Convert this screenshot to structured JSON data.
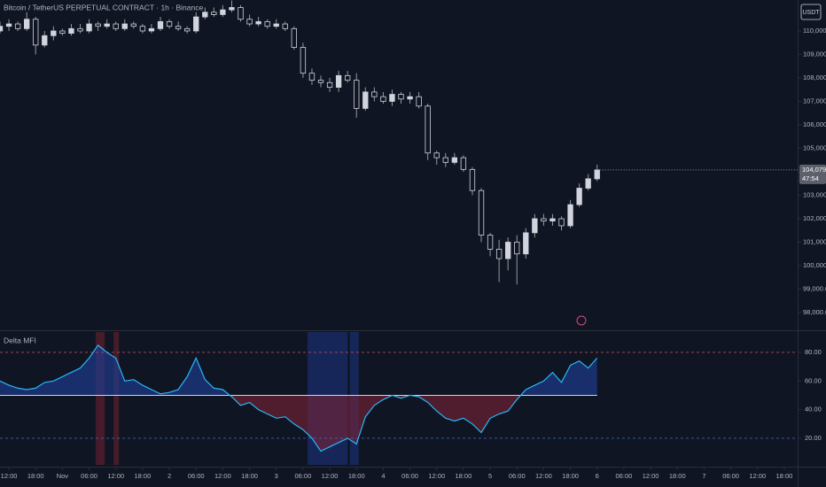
{
  "chart_data": [
    {
      "type": "candlestick",
      "title": "Bitcoin / TetherUS PERPETUAL CONTRACT · 1h · Binance",
      "currency_label": "USDT",
      "last_price": 104079,
      "last_price_label": "104,079.0",
      "countdown": "47:54",
      "up_color": "#d1d4dc",
      "down_color": "#0f1523",
      "wick_color": "#9598a1",
      "x": [
        -2,
        0,
        2,
        4,
        6,
        8,
        10,
        12,
        14,
        16,
        18,
        20,
        22,
        24,
        26,
        28,
        30,
        32,
        34,
        36,
        38,
        40,
        42,
        44,
        46,
        48,
        50,
        52,
        54,
        56,
        58,
        60,
        62,
        64,
        66,
        68,
        70,
        72,
        74,
        76,
        78,
        80,
        82,
        84,
        86,
        88,
        90,
        92,
        94,
        96,
        98,
        100,
        102,
        104,
        106,
        108,
        110,
        112,
        114,
        116,
        118,
        120,
        122,
        124,
        126,
        128,
        130,
        132
      ],
      "open": [
        110000,
        110200,
        110300,
        110100,
        110500,
        109400,
        109800,
        110000,
        109900,
        110100,
        110000,
        110300,
        110200,
        110300,
        110100,
        110300,
        110200,
        110000,
        110100,
        110400,
        110200,
        110100,
        110000,
        110600,
        110800,
        110700,
        110900,
        111000,
        110500,
        110300,
        110400,
        110200,
        110300,
        110100,
        109300,
        108200,
        107900,
        107800,
        107600,
        108100,
        107900,
        106700,
        107400,
        107200,
        107000,
        107300,
        107100,
        107200,
        106800,
        104800,
        104600,
        104400,
        104600,
        104100,
        103200,
        101300,
        100700,
        100300,
        101000,
        100500,
        101400,
        102000,
        101900,
        102000,
        101700,
        102600,
        103300,
        103700
      ],
      "high": [
        110400,
        110500,
        110400,
        110800,
        110600,
        110000,
        110200,
        110100,
        110300,
        110300,
        110500,
        110400,
        110500,
        110400,
        110500,
        110400,
        110300,
        110300,
        110600,
        110500,
        110400,
        110200,
        110800,
        111000,
        111000,
        111100,
        111300,
        111100,
        110700,
        110600,
        110500,
        110500,
        110400,
        110200,
        109500,
        108400,
        108100,
        108000,
        108300,
        108300,
        108200,
        107600,
        107600,
        107400,
        107500,
        107400,
        107400,
        107400,
        106900,
        104900,
        104800,
        104800,
        104700,
        104200,
        103300,
        101400,
        101100,
        101200,
        101300,
        101600,
        102200,
        102200,
        102200,
        102100,
        102800,
        103500,
        103900,
        104300
      ],
      "low": [
        109900,
        110000,
        110000,
        110000,
        109000,
        109300,
        109600,
        109800,
        109800,
        109900,
        109900,
        110000,
        110100,
        110000,
        110000,
        110100,
        109900,
        109900,
        110000,
        110100,
        110000,
        109900,
        109900,
        110500,
        110600,
        110600,
        110800,
        110400,
        110200,
        110200,
        110100,
        110100,
        110000,
        109200,
        108000,
        107700,
        107600,
        107400,
        107400,
        107800,
        106300,
        106600,
        107000,
        106900,
        106800,
        106900,
        106900,
        106700,
        104500,
        104300,
        104200,
        104300,
        104000,
        103000,
        101000,
        100400,
        99300,
        99800,
        99200,
        100300,
        101200,
        101700,
        101700,
        101500,
        101600,
        102500,
        103200,
        103600
      ],
      "close": [
        110200,
        110300,
        110100,
        110500,
        109400,
        109800,
        110000,
        109900,
        110100,
        110000,
        110300,
        110200,
        110300,
        110100,
        110300,
        110200,
        110000,
        110100,
        110400,
        110200,
        110100,
        110000,
        110600,
        110800,
        110700,
        110900,
        111000,
        110500,
        110300,
        110400,
        110200,
        110300,
        110100,
        109300,
        108200,
        107900,
        107800,
        107600,
        108100,
        107900,
        106700,
        107400,
        107200,
        107000,
        107300,
        107100,
        107200,
        106800,
        104800,
        104600,
        104400,
        104600,
        104100,
        103200,
        101300,
        100700,
        100300,
        101000,
        100500,
        101400,
        102000,
        101900,
        102000,
        101700,
        102600,
        103300,
        103700,
        104080
      ],
      "xlim": [
        -2,
        177
      ],
      "ylim": [
        97245,
        111320
      ],
      "yticks": [
        {
          "value": 110000,
          "label": "110,000.0"
        },
        {
          "value": 109000,
          "label": "109,000.0"
        },
        {
          "value": 108000,
          "label": "108,000.0"
        },
        {
          "value": 107000,
          "label": "107,000.0"
        },
        {
          "value": 106000,
          "label": "106,000.0"
        },
        {
          "value": 105000,
          "label": "105,000.0"
        },
        {
          "value": 104000,
          "label": "104,000.0"
        },
        {
          "value": 103000,
          "label": "103,000.0"
        },
        {
          "value": 102000,
          "label": "102,000.0"
        },
        {
          "value": 101000,
          "label": "101,000.0"
        },
        {
          "value": 100000,
          "label": "100,000.0"
        },
        {
          "value": 99000,
          "label": "99,000.0"
        },
        {
          "value": 98000,
          "label": "98,000.0"
        }
      ]
    },
    {
      "type": "line",
      "title": "Delta MFI",
      "color": "#29b6f6",
      "fill_above_color": "#1e3a8a",
      "fill_below_color": "#7a2335",
      "x": [
        -2,
        0,
        2,
        4,
        6,
        8,
        10,
        12,
        14,
        16,
        18,
        20,
        22,
        24,
        26,
        28,
        30,
        32,
        34,
        36,
        38,
        40,
        42,
        44,
        46,
        48,
        50,
        52,
        54,
        56,
        58,
        60,
        62,
        64,
        66,
        68,
        70,
        72,
        74,
        76,
        78,
        80,
        82,
        84,
        86,
        88,
        90,
        92,
        94,
        96,
        98,
        100,
        102,
        104,
        106,
        108,
        110,
        112,
        114,
        116,
        118,
        120,
        122,
        124,
        126,
        128,
        130,
        132
      ],
      "values": [
        60,
        57,
        55,
        54,
        55,
        59,
        60,
        63,
        66,
        69,
        76,
        85,
        80,
        76,
        60,
        61,
        57,
        54,
        51,
        52,
        54,
        63,
        76,
        61,
        55,
        54,
        49,
        43,
        45,
        40,
        37,
        34,
        35,
        30,
        26,
        20,
        11,
        14,
        17,
        20,
        16,
        35,
        43,
        47,
        50,
        48,
        50,
        49,
        45,
        39,
        34,
        32,
        34,
        30,
        24,
        34,
        37,
        39,
        47,
        54,
        57,
        60,
        66,
        59,
        71,
        74,
        69,
        76
      ],
      "levels": [
        80,
        50,
        20
      ],
      "level_colors": [
        "#b5475b",
        "#d1d4dc",
        "#3f5fbf"
      ],
      "zones": [
        {
          "start": 19.5,
          "end": 21.5,
          "color": "#5a1f2e"
        },
        {
          "start": 23.5,
          "end": 24.7,
          "color": "#5a1f2e"
        },
        {
          "start": 67,
          "end": 76,
          "color": "#1b2c6b"
        },
        {
          "start": 76.5,
          "end": 78.5,
          "color": "#1b2c6b"
        }
      ],
      "xlim": [
        -2,
        177
      ],
      "ylim": [
        1.4,
        94.2
      ],
      "yticks": [
        {
          "value": 80,
          "label": "80.00"
        },
        {
          "value": 60,
          "label": "60.00"
        },
        {
          "value": 40,
          "label": "40.00"
        },
        {
          "value": 20,
          "label": "20.00"
        }
      ],
      "xticks": [
        {
          "value": 0,
          "label": "12:00"
        },
        {
          "value": 6,
          "label": "18:00"
        },
        {
          "value": 12,
          "label": "Nov"
        },
        {
          "value": 18,
          "label": "06:00"
        },
        {
          "value": 24,
          "label": "12:00"
        },
        {
          "value": 30,
          "label": "18:00"
        },
        {
          "value": 36,
          "label": "2"
        },
        {
          "value": 42,
          "label": "06:00"
        },
        {
          "value": 48,
          "label": "12:00"
        },
        {
          "value": 54,
          "label": "18:00"
        },
        {
          "value": 60,
          "label": "3"
        },
        {
          "value": 66,
          "label": "06:00"
        },
        {
          "value": 72,
          "label": "12:00"
        },
        {
          "value": 78,
          "label": "18:00"
        },
        {
          "value": 84,
          "label": "4"
        },
        {
          "value": 90,
          "label": "06:00"
        },
        {
          "value": 96,
          "label": "12:00"
        },
        {
          "value": 102,
          "label": "18:00"
        },
        {
          "value": 108,
          "label": "5"
        },
        {
          "value": 114,
          "label": "06:00"
        },
        {
          "value": 120,
          "label": "12:00"
        },
        {
          "value": 126,
          "label": "18:00"
        },
        {
          "value": 132,
          "label": "6"
        },
        {
          "value": 138,
          "label": "06:00"
        },
        {
          "value": 144,
          "label": "12:00"
        },
        {
          "value": 150,
          "label": "18:00"
        },
        {
          "value": 156,
          "label": "7"
        },
        {
          "value": 162,
          "label": "06:00"
        },
        {
          "value": 168,
          "label": "12:00"
        },
        {
          "value": 174,
          "label": "18:00"
        }
      ]
    }
  ]
}
